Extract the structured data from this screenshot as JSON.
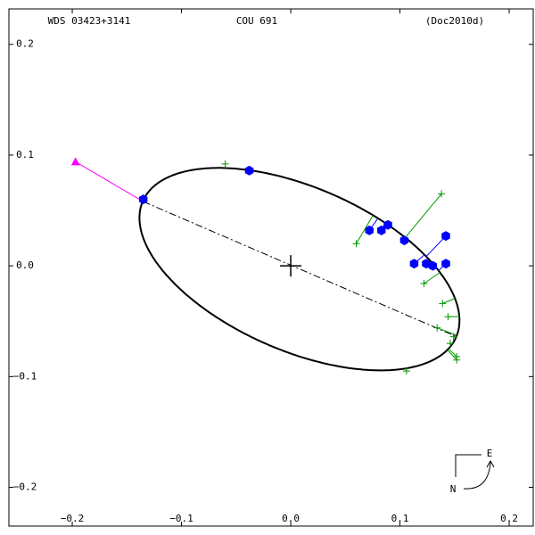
{
  "chart_data": {
    "type": "orbit",
    "title": "WDS 03423+3141",
    "subtitle": "COU 691",
    "reference": "(Doc2010d)",
    "xlim": [
      -0.258,
      0.222
    ],
    "ylim": [
      -0.235,
      0.232
    ],
    "xticks": [
      {
        "value": -0.2,
        "label": "−0.2"
      },
      {
        "value": -0.1,
        "label": "−0.1"
      },
      {
        "value": 0,
        "label": "0.0"
      },
      {
        "value": 0.1,
        "label": "0.1"
      },
      {
        "value": 0.2,
        "label": "0.2"
      }
    ],
    "yticks": [
      {
        "value": -0.2,
        "label": "−0.2"
      },
      {
        "value": -0.1,
        "label": "−0.1"
      },
      {
        "value": 0,
        "label": "0.0"
      },
      {
        "value": 0.1,
        "label": "0.1"
      },
      {
        "value": 0.2,
        "label": "0.2"
      }
    ],
    "orbit": {
      "center": [
        0.008,
        -0.003
      ],
      "semi_major": 0.156,
      "semi_minor": 0.074,
      "angle": -23,
      "color": "#000000"
    },
    "apsides": {
      "x": [
        -0.135,
        0.152
      ],
      "y": [
        0.058,
        -0.064
      ]
    },
    "node_marker": {
      "x": [
        -0.197,
        -0.135
      ],
      "y": [
        0.094,
        0.058
      ],
      "color": "#ff00ff"
    },
    "series": [
      {
        "color": "#0000ff",
        "marker": "hexagon",
        "x": [
          -0.135,
          -0.038,
          0.072,
          0.083,
          0.089,
          0.104,
          0.113,
          0.124,
          0.13,
          0.142,
          0.142
        ],
        "values": [
          0.06,
          0.086,
          0.032,
          0.032,
          0.037,
          0.023,
          0.002,
          0.002,
          0.0,
          0.002,
          0.027
        ]
      },
      {
        "color": "#009900",
        "marker": "cross",
        "x": [
          -0.06,
          0.138,
          0.06,
          0.122,
          0.139,
          0.144,
          0.134,
          0.149,
          0.146,
          0.152,
          0.152,
          0.106
        ],
        "values": [
          0.092,
          0.065,
          0.02,
          -0.016,
          -0.034,
          -0.046,
          -0.056,
          -0.064,
          -0.07,
          -0.082,
          -0.085,
          -0.095
        ]
      }
    ],
    "compass": {
      "east": "E",
      "north": "N"
    }
  }
}
